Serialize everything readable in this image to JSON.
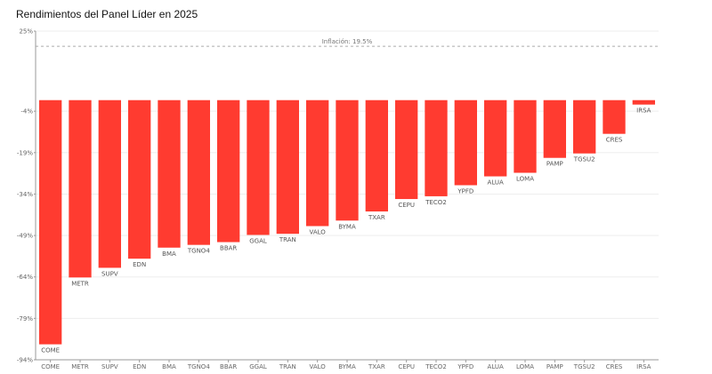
{
  "chart_data": {
    "type": "bar",
    "title": "Rendimientos del Panel Líder en 2025",
    "xlabel": "",
    "ylabel": "",
    "ylim": [
      -94,
      25
    ],
    "y_ticks": [
      25,
      -4,
      -19,
      -34,
      -49,
      -64,
      -79,
      -94
    ],
    "y_tick_labels": [
      "25%",
      "-4%",
      "-19%",
      "-34%",
      "-49%",
      "-64%",
      "-79%",
      "-94%"
    ],
    "categories": [
      "COME",
      "METR",
      "SUPV",
      "EDN",
      "BMA",
      "TGNO4",
      "BBAR",
      "GGAL",
      "TRAN",
      "VALO",
      "BYMA",
      "TXAR",
      "CEPU",
      "TECO2",
      "YPFD",
      "ALUA",
      "LOMA",
      "PAMP",
      "TGSU2",
      "CRES",
      "IRSA"
    ],
    "values": [
      -88.4,
      -64.2,
      -60.7,
      -57.4,
      -53.4,
      -52.4,
      -51.4,
      -48.8,
      -48.4,
      -45.6,
      -43.6,
      -40.3,
      -35.8,
      -34.8,
      -30.8,
      -27.6,
      -26.3,
      -20.9,
      -19.3,
      -12.2,
      -1.6
    ],
    "bar_color": "#ff3b30",
    "reference_line": {
      "value": 19.5,
      "label": "Inflación: 19.5%"
    },
    "grid": true,
    "legend": "none"
  }
}
